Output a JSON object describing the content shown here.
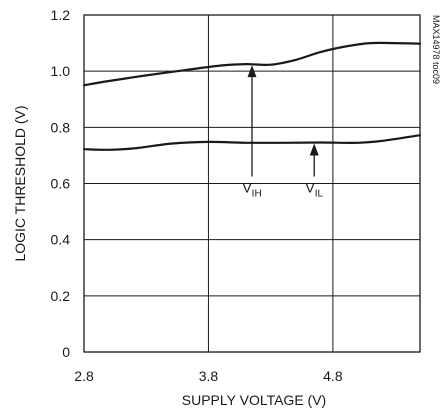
{
  "chart_data": {
    "type": "line",
    "xlabel": "SUPPLY VOLTAGE (V)",
    "ylabel": "LOGIC THRESHOLD (V)",
    "xlim": [
      2.8,
      5.5
    ],
    "ylim": [
      0,
      1.2
    ],
    "xticks": [
      2.8,
      3.8,
      4.8
    ],
    "xtick_labels": [
      "2.8",
      "3.8",
      "4.8"
    ],
    "yticks": [
      0,
      0.2,
      0.4,
      0.6,
      0.8,
      1.0,
      1.2
    ],
    "ytick_labels": [
      "0",
      "0.2",
      "0.4",
      "0.6",
      "0.8",
      "1.0",
      "1.2"
    ],
    "grid": true,
    "watermark": "MAX14978 toc09",
    "series": [
      {
        "name_main": "V",
        "name_sub": "IH",
        "x": [
          2.8,
          3.0,
          3.3,
          3.6,
          3.9,
          4.1,
          4.3,
          4.5,
          4.7,
          4.9,
          5.1,
          5.3,
          5.5
        ],
        "y": [
          0.95,
          0.965,
          0.985,
          1.003,
          1.02,
          1.025,
          1.023,
          1.04,
          1.068,
          1.088,
          1.1,
          1.1,
          1.098
        ]
      },
      {
        "name_main": "V",
        "name_sub": "IL",
        "x": [
          2.8,
          3.0,
          3.2,
          3.5,
          3.8,
          4.1,
          4.4,
          4.7,
          5.0,
          5.2,
          5.5
        ],
        "y": [
          0.722,
          0.72,
          0.725,
          0.742,
          0.748,
          0.745,
          0.745,
          0.746,
          0.745,
          0.752,
          0.772
        ]
      }
    ],
    "annotations": [
      {
        "series_index": 0,
        "label_main": "V",
        "label_sub": "IH",
        "arrow_x": 4.15,
        "arrow_from_y": 0.625,
        "arrow_to_y": 1.025
      },
      {
        "series_index": 1,
        "label_main": "V",
        "label_sub": "IL",
        "arrow_x": 4.65,
        "arrow_from_y": 0.625,
        "arrow_to_y": 0.746
      }
    ]
  }
}
